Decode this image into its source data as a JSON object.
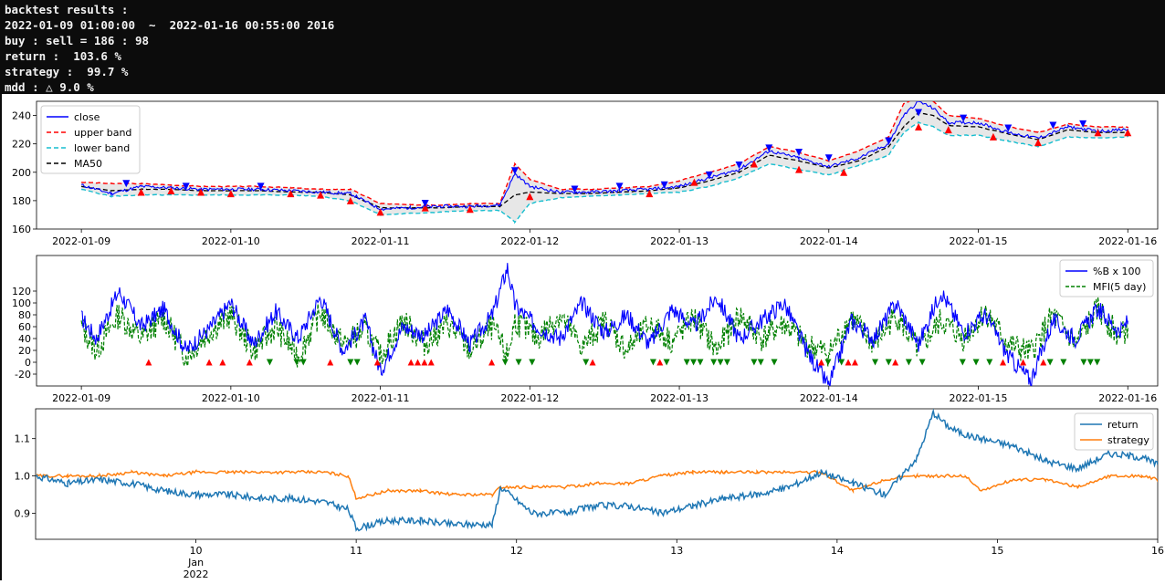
{
  "console": {
    "lines": [
      "backtest results :",
      "2022-01-09 01:00:00  ~  2022-01-16 00:55:00 2016",
      "buy : sell = 186 : 98",
      "return :  103.6 %",
      "strategy :  99.7 %",
      "mdd : △ 9.0 %"
    ]
  },
  "colors": {
    "close": "#0000ff",
    "upper_band": "#ff0000",
    "lower_band": "#17becf",
    "ma50": "#000000",
    "band_fill": "#d3d3d3",
    "percent_b": "#0000ff",
    "mfi": "#008000",
    "buy_marker": "#ff0000",
    "sell_marker": "#0000ff",
    "return": "#1f77b4",
    "strategy": "#ff7f0e"
  },
  "chart_data": [
    {
      "type": "line",
      "title": "",
      "x_ticks": [
        "2022-01-09",
        "2022-01-10",
        "2022-01-11",
        "2022-01-12",
        "2022-01-13",
        "2022-01-14",
        "2022-01-15",
        "2022-01-16"
      ],
      "y_ticks": [
        "160",
        "180",
        "200",
        "220",
        "240"
      ],
      "ylim": [
        160,
        250
      ],
      "legend_position": "upper-left",
      "legend": [
        "close",
        "upper band",
        "lower band",
        "MA50"
      ],
      "x": [
        9.0,
        9.2,
        9.4,
        9.6,
        9.8,
        10.0,
        10.2,
        10.4,
        10.6,
        10.8,
        11.0,
        11.2,
        11.4,
        11.6,
        11.8,
        11.9,
        12.0,
        12.2,
        12.4,
        12.6,
        12.8,
        13.0,
        13.2,
        13.4,
        13.6,
        13.8,
        14.0,
        14.2,
        14.4,
        14.5,
        14.6,
        14.7,
        14.8,
        15.0,
        15.2,
        15.4,
        15.6,
        15.8,
        16.0
      ],
      "series": [
        {
          "name": "close",
          "values": [
            191,
            185,
            190,
            189,
            188,
            188,
            188,
            187,
            186,
            185,
            174,
            175,
            176,
            176,
            177,
            199,
            190,
            186,
            186,
            187,
            188,
            190,
            196,
            202,
            215,
            210,
            204,
            210,
            220,
            240,
            250,
            245,
            235,
            235,
            228,
            224,
            232,
            229,
            230
          ]
        },
        {
          "name": "upper band",
          "values": [
            193,
            192,
            192,
            191,
            190,
            190,
            190,
            189,
            188,
            188,
            178,
            177,
            177,
            178,
            178,
            206,
            195,
            188,
            188,
            189,
            190,
            194,
            200,
            206,
            218,
            214,
            208,
            215,
            225,
            248,
            254,
            250,
            240,
            238,
            232,
            228,
            234,
            232,
            232
          ]
        },
        {
          "name": "lower band",
          "values": [
            188,
            183,
            184,
            184,
            184,
            184,
            184,
            184,
            183,
            180,
            170,
            171,
            172,
            173,
            173,
            165,
            178,
            182,
            183,
            184,
            185,
            186,
            190,
            196,
            206,
            202,
            198,
            205,
            212,
            228,
            235,
            232,
            226,
            226,
            222,
            218,
            225,
            224,
            225
          ]
        },
        {
          "name": "MA50",
          "values": [
            190,
            187,
            188,
            188,
            187,
            187,
            187,
            186,
            186,
            184,
            175,
            175,
            175,
            176,
            176,
            184,
            186,
            185,
            185,
            186,
            187,
            189,
            194,
            200,
            212,
            208,
            203,
            208,
            218,
            232,
            242,
            240,
            233,
            232,
            227,
            223,
            230,
            228,
            228
          ]
        }
      ],
      "buy_signals": [
        [
          9.4,
          186
        ],
        [
          9.6,
          187
        ],
        [
          9.8,
          186
        ],
        [
          10.0,
          185
        ],
        [
          10.4,
          185
        ],
        [
          10.6,
          184
        ],
        [
          10.8,
          180
        ],
        [
          11.0,
          172
        ],
        [
          11.3,
          175
        ],
        [
          11.6,
          174
        ],
        [
          12.0,
          183
        ],
        [
          12.8,
          185
        ],
        [
          13.1,
          193
        ],
        [
          13.5,
          206
        ],
        [
          13.8,
          202
        ],
        [
          14.1,
          200
        ],
        [
          14.6,
          232
        ],
        [
          14.8,
          230
        ],
        [
          15.1,
          225
        ],
        [
          15.4,
          221
        ],
        [
          15.8,
          228
        ],
        [
          16.0,
          228
        ]
      ],
      "sell_signals": [
        [
          9.3,
          192
        ],
        [
          9.7,
          190
        ],
        [
          10.2,
          190
        ],
        [
          11.3,
          178
        ],
        [
          11.9,
          201
        ],
        [
          12.3,
          188
        ],
        [
          12.6,
          190
        ],
        [
          12.9,
          191
        ],
        [
          13.2,
          198
        ],
        [
          13.4,
          205
        ],
        [
          13.6,
          217
        ],
        [
          13.8,
          214
        ],
        [
          14.0,
          210
        ],
        [
          14.4,
          222
        ],
        [
          14.6,
          242
        ],
        [
          14.9,
          238
        ],
        [
          15.2,
          231
        ],
        [
          15.5,
          233
        ],
        [
          15.7,
          234
        ]
      ]
    },
    {
      "type": "line",
      "title": "",
      "x_ticks": [
        "2022-01-09",
        "2022-01-10",
        "2022-01-11",
        "2022-01-12",
        "2022-01-13",
        "2022-01-14",
        "2022-01-15",
        "2022-01-16"
      ],
      "y_ticks": [
        "-20",
        "0",
        "20",
        "40",
        "60",
        "80",
        "100",
        "120"
      ],
      "ylim": [
        -40,
        180
      ],
      "legend_position": "upper-right",
      "legend": [
        "%B x 100",
        "MFI(5 day)"
      ],
      "x": [
        9.0,
        9.1,
        9.25,
        9.4,
        9.55,
        9.7,
        9.85,
        10.0,
        10.15,
        10.3,
        10.45,
        10.6,
        10.75,
        10.9,
        11.0,
        11.15,
        11.3,
        11.45,
        11.6,
        11.75,
        11.85,
        11.9,
        12.05,
        12.2,
        12.35,
        12.5,
        12.65,
        12.8,
        12.95,
        13.1,
        13.25,
        13.4,
        13.55,
        13.7,
        13.85,
        14.0,
        14.15,
        14.3,
        14.45,
        14.6,
        14.75,
        14.9,
        15.05,
        15.2,
        15.35,
        15.5,
        15.65,
        15.8,
        15.95,
        16.0
      ],
      "series": [
        {
          "name": "%B x 100",
          "values": [
            75,
            40,
            120,
            60,
            90,
            20,
            55,
            100,
            30,
            85,
            40,
            110,
            20,
            70,
            -15,
            60,
            45,
            90,
            30,
            80,
            160,
            95,
            60,
            40,
            100,
            50,
            80,
            30,
            90,
            60,
            110,
            40,
            70,
            100,
            20,
            -40,
            70,
            40,
            100,
            30,
            120,
            50,
            80,
            10,
            -30,
            70,
            40,
            90,
            50,
            70
          ]
        },
        {
          "name": "MFI(5 day)",
          "values": [
            60,
            20,
            80,
            40,
            75,
            10,
            50,
            80,
            20,
            60,
            10,
            85,
            30,
            55,
            10,
            70,
            30,
            65,
            20,
            60,
            10,
            70,
            40,
            80,
            25,
            70,
            20,
            65,
            35,
            75,
            20,
            80,
            40,
            65,
            30,
            15,
            75,
            30,
            80,
            20,
            70,
            40,
            85,
            30,
            15,
            80,
            30,
            90,
            40,
            60
          ]
        }
      ]
    },
    {
      "type": "line",
      "title": "",
      "xlabel": "",
      "x_ticks": [
        "10",
        "11",
        "12",
        "13",
        "14",
        "15",
        "16"
      ],
      "x_minor_label": "Jan",
      "x_minor_label_2": "2022",
      "y_ticks": [
        "0.9",
        "1.0",
        "1.1"
      ],
      "ylim": [
        0.83,
        1.18
      ],
      "legend_position": "upper-right",
      "legend": [
        "return",
        "strategy"
      ],
      "x": [
        9.0,
        9.2,
        9.4,
        9.6,
        9.8,
        10.0,
        10.2,
        10.4,
        10.6,
        10.8,
        10.95,
        11.0,
        11.2,
        11.4,
        11.6,
        11.85,
        11.9,
        12.1,
        12.3,
        12.5,
        12.7,
        12.9,
        13.1,
        13.3,
        13.5,
        13.7,
        13.9,
        14.1,
        14.3,
        14.5,
        14.6,
        14.7,
        14.8,
        14.9,
        15.1,
        15.3,
        15.5,
        15.7,
        15.9,
        16.0
      ],
      "series": [
        {
          "name": "return",
          "values": [
            1.0,
            0.98,
            0.99,
            0.98,
            0.96,
            0.95,
            0.95,
            0.94,
            0.94,
            0.93,
            0.91,
            0.86,
            0.88,
            0.88,
            0.87,
            0.87,
            0.97,
            0.9,
            0.9,
            0.92,
            0.92,
            0.9,
            0.92,
            0.94,
            0.95,
            0.97,
            1.01,
            0.98,
            0.95,
            1.05,
            1.17,
            1.13,
            1.11,
            1.1,
            1.08,
            1.04,
            1.02,
            1.06,
            1.05,
            1.03
          ]
        },
        {
          "name": "strategy",
          "values": [
            1.0,
            1.0,
            1.0,
            1.01,
            1.0,
            1.01,
            1.01,
            1.01,
            1.01,
            1.01,
            1.0,
            0.94,
            0.96,
            0.96,
            0.95,
            0.95,
            0.97,
            0.97,
            0.97,
            0.98,
            0.98,
            1.0,
            1.01,
            1.01,
            1.01,
            1.01,
            1.01,
            0.96,
            0.99,
            1.0,
            1.0,
            1.0,
            1.0,
            0.96,
            0.99,
            0.99,
            0.97,
            1.0,
            1.0,
            0.99
          ]
        }
      ]
    }
  ]
}
